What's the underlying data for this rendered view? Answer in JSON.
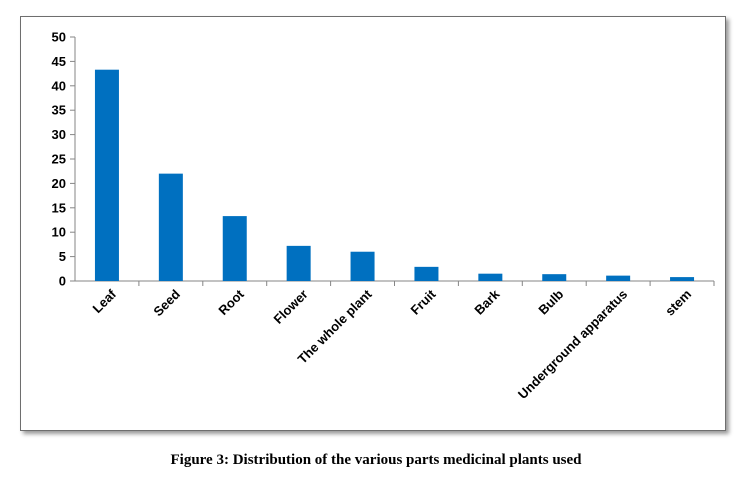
{
  "caption": "Figure 3: Distribution of the various parts medicinal plants used",
  "chart_data": {
    "type": "bar",
    "title": "",
    "xlabel": "",
    "ylabel": "",
    "categories": [
      "Leaf",
      "Seed",
      "Root",
      "Flower",
      "The whole plant",
      "Fruit",
      "Bark",
      "Bulb",
      "Underground apparatus",
      "stem"
    ],
    "values": [
      43.3,
      22.0,
      13.3,
      7.2,
      6.0,
      2.9,
      1.5,
      1.4,
      1.1,
      0.8
    ],
    "ylim": [
      0,
      50
    ],
    "yticks": [
      "0",
      "5",
      "10",
      "15",
      "20",
      "25",
      "30",
      "35",
      "40",
      "45",
      "50"
    ],
    "grid": false,
    "legend": "none",
    "bar_color": "#0070c0"
  }
}
